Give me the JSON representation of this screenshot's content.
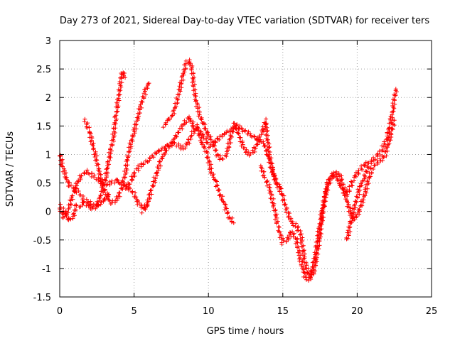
{
  "chart_data": {
    "type": "scatter",
    "title": "Day 273 of 2021, Sidereal Day-to-day VTEC variation (SDTVAR) for receiver ters",
    "xlabel": "GPS time / hours",
    "ylabel": "SDTVAR / TECUs",
    "xlim": [
      0,
      25
    ],
    "ylim": [
      -1.5,
      3
    ],
    "xticks": [
      0,
      5,
      10,
      15,
      20,
      25
    ],
    "yticks": [
      -1.5,
      -1,
      -0.5,
      0,
      0.5,
      1,
      1.5,
      2,
      2.5,
      3
    ],
    "xtick_labels": [
      "0",
      "5",
      "10",
      "15",
      "20",
      "25"
    ],
    "ytick_labels": [
      "-1.5",
      "-1",
      "-0.5",
      "0",
      "0.5",
      "1",
      "1.5",
      "2",
      "2.5",
      "3"
    ],
    "grid": true,
    "marker": "+",
    "color": "#ff0000",
    "series": [
      {
        "x": [
          0.0,
          0.2,
          0.4,
          0.7,
          1.0,
          1.2,
          1.5,
          1.7,
          2.0,
          2.3,
          2.5,
          2.8,
          3.0,
          3.3
        ],
        "y": [
          1.0,
          0.8,
          0.6,
          0.45,
          0.4,
          0.35,
          0.25,
          0.2,
          0.15,
          0.1,
          0.1,
          0.15,
          0.2,
          0.3
        ]
      },
      {
        "x": [
          0.0,
          0.3,
          0.6,
          0.9,
          1.2,
          1.5,
          1.8,
          2.0,
          2.3,
          2.6,
          2.9,
          3.2,
          3.5,
          3.8,
          4.1,
          4.4,
          4.7,
          5.0,
          5.3,
          5.6,
          5.9
        ],
        "y": [
          0.05,
          -0.1,
          0.05,
          0.3,
          0.5,
          0.65,
          0.7,
          0.68,
          0.62,
          0.55,
          0.5,
          0.48,
          0.5,
          0.55,
          0.5,
          0.45,
          0.4,
          0.3,
          0.15,
          0.05,
          0.1
        ]
      },
      {
        "x": [
          0.0,
          0.3,
          0.6,
          0.9,
          1.1,
          1.4,
          1.6,
          1.9,
          2.2,
          2.5,
          2.8,
          3.1,
          3.3,
          3.6,
          3.8,
          4.0,
          4.2,
          4.4
        ],
        "y": [
          0.1,
          0.0,
          -0.15,
          -0.1,
          0.1,
          0.1,
          0.15,
          0.1,
          0.05,
          0.1,
          0.3,
          0.6,
          0.9,
          1.3,
          1.7,
          2.1,
          2.45,
          2.35
        ]
      },
      {
        "x": [
          1.7,
          2.0,
          2.3,
          2.6,
          2.9,
          3.2,
          3.5,
          3.8,
          4.1,
          4.4,
          4.6,
          4.9,
          5.2,
          5.5,
          5.8,
          6.0
        ],
        "y": [
          1.6,
          1.4,
          1.1,
          0.75,
          0.45,
          0.25,
          0.15,
          0.2,
          0.35,
          0.65,
          1.0,
          1.3,
          1.6,
          1.9,
          2.15,
          2.25
        ]
      },
      {
        "x": [
          4.5,
          4.8,
          5.1,
          5.4,
          5.7,
          6.0,
          6.3,
          6.6,
          6.9,
          7.2,
          7.5,
          7.8,
          8.1,
          8.4,
          8.7,
          9.0,
          9.3,
          9.6,
          9.9,
          10.2,
          10.5,
          10.8,
          11.1,
          11.4,
          11.7
        ],
        "y": [
          0.4,
          0.55,
          0.7,
          0.8,
          0.85,
          0.9,
          1.0,
          1.05,
          1.1,
          1.15,
          1.2,
          1.3,
          1.45,
          1.55,
          1.65,
          1.5,
          1.4,
          1.2,
          1.0,
          0.7,
          0.5,
          0.3,
          0.1,
          -0.1,
          -0.2
        ]
      },
      {
        "x": [
          5.6,
          5.9,
          6.2,
          6.5,
          6.8,
          7.1,
          7.4,
          7.7,
          8.0,
          8.3,
          8.6,
          8.9,
          9.2,
          9.5,
          9.8,
          10.1,
          10.4,
          10.7,
          11.0,
          11.3,
          11.6,
          11.9,
          12.2,
          12.5,
          12.8,
          13.1,
          13.4,
          13.7,
          14.0,
          14.3,
          14.6,
          14.9
        ],
        "y": [
          0.0,
          0.15,
          0.4,
          0.65,
          0.9,
          1.05,
          1.15,
          1.2,
          1.15,
          1.1,
          1.2,
          1.35,
          1.5,
          1.4,
          1.25,
          1.15,
          1.2,
          1.3,
          1.35,
          1.4,
          1.45,
          1.5,
          1.45,
          1.4,
          1.35,
          1.3,
          1.25,
          1.2,
          1.0,
          0.7,
          0.5,
          0.4
        ]
      },
      {
        "x": [
          7.0,
          7.3,
          7.6,
          7.9,
          8.2,
          8.5,
          8.7,
          8.9,
          9.1,
          9.4,
          9.7,
          10.0,
          10.3,
          10.6,
          10.9,
          11.2,
          11.5,
          11.8,
          12.1,
          12.4,
          12.7,
          13.0,
          13.3,
          13.6,
          13.9
        ],
        "y": [
          1.5,
          1.6,
          1.7,
          1.95,
          2.3,
          2.6,
          2.65,
          2.5,
          2.0,
          1.7,
          1.5,
          1.35,
          1.2,
          1.0,
          0.9,
          1.0,
          1.3,
          1.55,
          1.3,
          1.1,
          1.0,
          1.05,
          1.2,
          1.4,
          1.55
        ]
      },
      {
        "x": [
          13.5,
          13.8,
          14.1,
          14.4,
          14.7,
          15.0,
          15.3,
          15.6,
          15.9,
          16.2,
          16.5,
          16.8,
          17.1,
          17.4,
          17.7,
          18.0,
          18.3,
          18.6,
          18.9,
          19.2,
          19.5,
          19.8,
          20.1,
          20.4,
          20.7
        ],
        "y": [
          0.8,
          0.6,
          0.4,
          0.1,
          -0.3,
          -0.55,
          -0.5,
          -0.35,
          -0.5,
          -0.85,
          -1.15,
          -1.2,
          -1.05,
          -0.6,
          0.0,
          0.5,
          0.65,
          0.6,
          0.45,
          0.3,
          0.4,
          0.6,
          0.7,
          0.8,
          0.85
        ]
      },
      {
        "x": [
          13.8,
          14.1,
          14.4,
          14.7,
          15.0,
          15.3,
          15.6,
          15.9,
          16.2,
          16.5,
          16.8,
          17.1,
          17.4,
          17.7,
          18.0,
          18.3,
          18.6,
          18.9,
          19.2,
          19.5,
          19.8,
          20.1,
          20.4,
          20.7,
          21.0,
          21.3,
          21.6,
          21.9,
          22.2,
          22.5
        ],
        "y": [
          1.6,
          1.0,
          0.6,
          0.45,
          0.25,
          0.0,
          -0.2,
          -0.25,
          -0.4,
          -0.9,
          -1.15,
          -0.9,
          -0.4,
          0.1,
          0.45,
          0.6,
          0.7,
          0.6,
          0.3,
          0.0,
          -0.15,
          0.0,
          0.2,
          0.5,
          0.75,
          0.85,
          0.9,
          1.0,
          1.3,
          1.6
        ]
      },
      {
        "x": [
          19.3,
          19.6,
          19.9,
          20.2,
          20.5,
          20.8,
          21.1,
          21.4,
          21.7,
          22.0,
          22.2,
          22.4,
          22.6
        ],
        "y": [
          -0.5,
          -0.15,
          0.15,
          0.45,
          0.6,
          0.85,
          0.9,
          1.0,
          1.1,
          1.3,
          1.5,
          1.8,
          2.15
        ]
      }
    ]
  }
}
